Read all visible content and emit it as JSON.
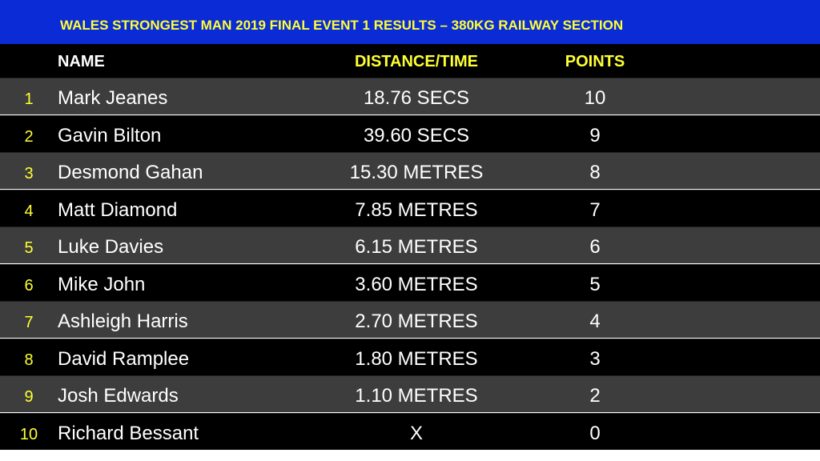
{
  "header": {
    "title": "WALES STRONGEST MAN 2019 FINAL EVENT 1 RESULTS – 380KG RAILWAY SECTION"
  },
  "table": {
    "columns": [
      "NAME",
      "DISTANCE/TIME",
      "POINTS"
    ],
    "rows": [
      [
        1,
        "Mark Jeanes",
        "18.76 SECS",
        10
      ],
      [
        2,
        "Gavin Bilton",
        "39.60 SECS",
        9
      ],
      [
        3,
        "Desmond Gahan",
        "15.30 METRES",
        8
      ],
      [
        4,
        "Matt Diamond",
        "7.85 METRES",
        7
      ],
      [
        5,
        "Luke Davies",
        "6.15 METRES",
        6
      ],
      [
        6,
        "Mike John",
        "3.60 METRES",
        5
      ],
      [
        7,
        "Ashleigh  Harris",
        "2.70 METRES",
        4
      ],
      [
        8,
        "David Ramplee",
        "1.80 METRES",
        3
      ],
      [
        9,
        "Josh Edwards",
        "1.10 METRES",
        2
      ],
      [
        10,
        "Richard Bessant",
        "X",
        0
      ]
    ]
  }
}
